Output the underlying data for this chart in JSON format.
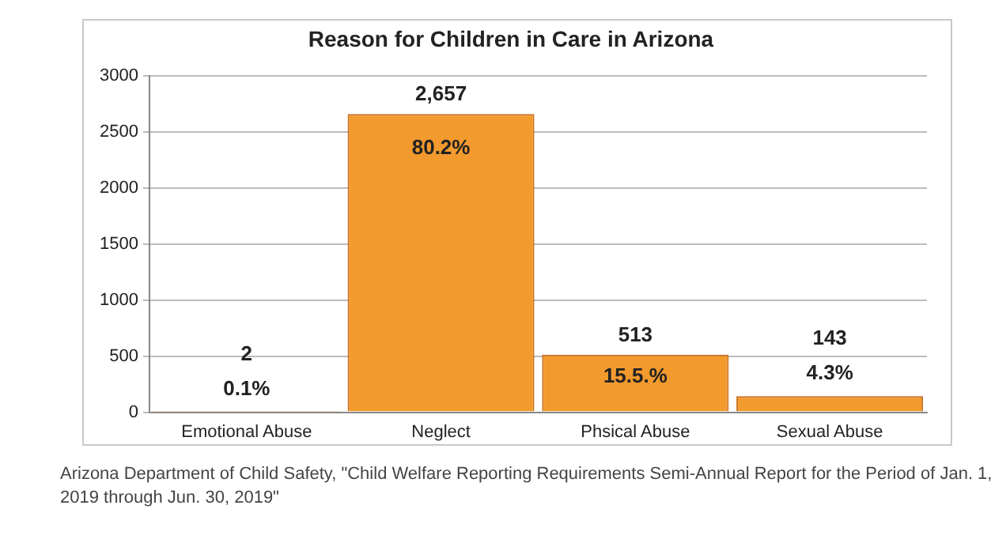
{
  "chart_data": {
    "type": "bar",
    "title": "Reason for Children in Care in Arizona",
    "categories": [
      "Emotional Abuse",
      "Neglect",
      "Phsical Abuse",
      "Sexual Abuse"
    ],
    "values": [
      2,
      2657,
      513,
      143
    ],
    "color": "#f39a2e",
    "value_labels": [
      "2",
      "2,657",
      "513",
      "143"
    ],
    "ylim": [
      0,
      3000
    ],
    "yticks": [
      0,
      500,
      1000,
      1500,
      2000,
      2500,
      3000
    ],
    "grid": "y",
    "annotations": [
      {
        "text": "0.1%",
        "x": "Emotional Abuse",
        "y": 2
      },
      {
        "text": "80.2%",
        "x": "Neglect",
        "y": 2657
      },
      {
        "text": "15.5.%",
        "x": "Phsical Abuse",
        "y": 513
      },
      {
        "text": "4.3%",
        "x": "Sexual Abuse",
        "y": 143
      },
      "Arizona Department of Child Safety, \"Child Welfare Reporting Requirements Semi-Annual Report for the Period of Jan. 1, 2019 through Jun. 30, 2019\""
    ]
  }
}
